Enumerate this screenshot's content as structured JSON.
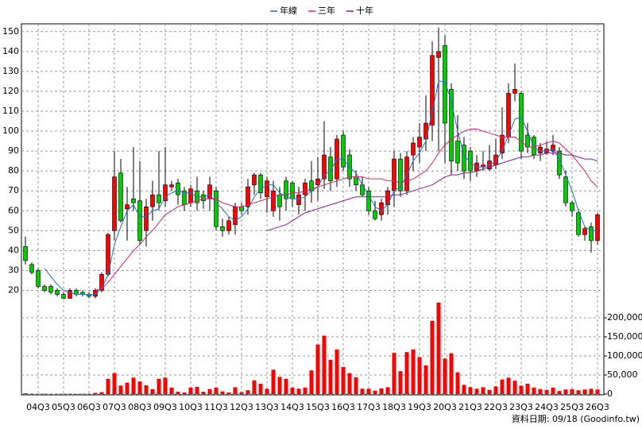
{
  "chart_data": {
    "type": "candlestick",
    "categories": [
      null,
      null,
      "04Q3",
      null,
      null,
      null,
      "05Q3",
      null,
      null,
      null,
      "06Q3",
      null,
      null,
      null,
      "07Q3",
      null,
      null,
      null,
      "08Q3",
      null,
      null,
      null,
      "09Q3",
      null,
      null,
      null,
      "10Q3",
      null,
      null,
      null,
      "11Q3",
      null,
      null,
      null,
      "12Q3",
      null,
      null,
      null,
      "13Q3",
      null,
      null,
      null,
      "14Q3",
      null,
      null,
      null,
      "15Q3",
      null,
      null,
      null,
      "16Q3",
      null,
      null,
      null,
      "17Q3",
      null,
      null,
      null,
      "18Q3",
      null,
      null,
      null,
      "19Q3",
      null,
      null,
      null,
      "20Q3",
      null,
      null,
      null,
      "21Q3",
      null,
      null,
      null,
      "22Q3",
      null,
      null,
      null,
      "23Q3",
      null,
      null,
      null,
      "24Q3",
      null,
      null,
      null,
      "25Q3",
      null,
      null,
      null,
      "26Q3"
    ],
    "open": [
      42,
      33,
      30,
      22,
      22,
      20,
      18,
      16,
      20,
      19,
      18,
      17,
      20,
      28,
      50,
      79,
      61,
      66,
      65,
      50,
      62,
      68,
      65,
      72,
      74,
      70,
      64,
      70,
      68,
      66,
      70,
      52,
      50,
      53,
      62,
      62,
      73,
      78,
      67,
      60,
      68,
      75,
      74,
      63,
      68,
      75,
      73,
      76,
      87,
      76,
      98,
      88,
      77,
      73,
      70,
      60,
      58,
      63,
      70,
      86,
      70,
      88,
      92,
      96,
      103,
      137,
      143,
      121,
      95,
      93,
      90,
      80,
      82,
      81,
      83,
      89,
      97,
      119,
      119,
      98,
      97,
      89,
      89,
      90,
      90,
      77,
      64,
      59,
      48,
      52,
      45
    ],
    "high": [
      47,
      34,
      31,
      23,
      23,
      21,
      19,
      21,
      21,
      20,
      19,
      21,
      29,
      49,
      90,
      86,
      72,
      92,
      85,
      66,
      75,
      90,
      92,
      75,
      76,
      72,
      73,
      77,
      70,
      77,
      72,
      56,
      57,
      64,
      64,
      76,
      79,
      79,
      77,
      75,
      72,
      77,
      75,
      72,
      76,
      85,
      87,
      105,
      92,
      98,
      100,
      91,
      80,
      77,
      72,
      65,
      66,
      72,
      90,
      89,
      90,
      97,
      104,
      118,
      145,
      152,
      148,
      124,
      108,
      97,
      92,
      88,
      90,
      93,
      96,
      112,
      124,
      134,
      120,
      104,
      98,
      94,
      95,
      98,
      92,
      80,
      65,
      61,
      52,
      54,
      59
    ],
    "low": [
      33,
      28,
      21,
      19,
      18,
      17,
      15.5,
      16,
      17,
      17,
      16,
      16,
      19,
      27,
      45,
      54,
      45,
      60,
      43,
      42,
      55,
      60,
      62,
      70,
      63,
      60,
      62,
      60,
      61,
      60,
      50,
      47,
      48,
      48,
      58,
      58,
      68,
      66,
      59,
      57,
      55,
      60,
      62,
      58,
      60,
      64,
      65,
      71,
      70,
      72,
      80,
      72,
      70,
      67,
      58,
      55,
      55,
      58,
      62,
      67,
      68,
      80,
      84,
      90,
      95,
      90,
      84,
      78,
      80,
      76,
      75,
      77,
      80,
      80,
      81,
      86,
      94,
      115,
      86,
      89,
      86,
      85,
      88,
      88,
      76,
      62,
      57,
      47,
      45,
      39,
      43
    ],
    "close": [
      35,
      29,
      22,
      20,
      19,
      18,
      16,
      20,
      18,
      18,
      17,
      20,
      28,
      48,
      77,
      55,
      63,
      64,
      45,
      62,
      68,
      64,
      73,
      73,
      68,
      63,
      71,
      64,
      65,
      73,
      52,
      50,
      55,
      62,
      60,
      72,
      78,
      69,
      75,
      70,
      62,
      66,
      66,
      68,
      74,
      70,
      76,
      88,
      75,
      96,
      82,
      76,
      73,
      68,
      60,
      56,
      64,
      70,
      86,
      70,
      87,
      94,
      97,
      104,
      138,
      140,
      104,
      85,
      84,
      80,
      80,
      84,
      83,
      85,
      88,
      98,
      119,
      121,
      90,
      92,
      88,
      92,
      91,
      93,
      78,
      64,
      60,
      48,
      51,
      45,
      58
    ],
    "up_color": "#ff0000",
    "down_color": "#00cc00",
    "series": [
      {
        "name": "年線",
        "color": "#1f6fd0",
        "values": [
          null,
          null,
          null,
          31,
          27,
          23,
          20,
          19,
          18,
          18,
          18,
          18,
          21,
          28,
          43,
          52,
          60,
          63,
          57,
          57,
          60,
          61,
          67,
          69,
          70,
          69,
          69,
          67,
          67,
          68,
          64,
          61,
          57,
          55,
          57,
          61,
          67,
          71,
          73,
          73,
          69,
          67,
          66,
          66,
          67,
          70,
          72,
          78,
          80,
          86,
          86,
          82,
          79,
          73,
          68,
          62,
          60,
          63,
          70,
          72,
          78,
          85,
          89,
          95,
          110,
          125,
          125,
          115,
          100,
          88,
          84,
          82,
          82,
          83,
          85,
          90,
          98,
          106,
          107,
          100,
          92,
          90,
          90,
          91,
          86,
          78,
          70,
          60,
          52,
          50,
          50
        ]
      },
      {
        "name": "三年",
        "color": "#e0206a",
        "values": [
          null,
          null,
          null,
          null,
          null,
          null,
          null,
          null,
          null,
          null,
          null,
          20,
          21,
          24,
          28,
          32,
          36,
          40,
          43,
          47,
          50,
          54,
          58,
          60,
          62,
          63,
          64,
          65,
          66,
          66,
          66,
          64,
          63,
          62,
          62,
          63,
          64,
          65,
          66,
          67,
          68,
          68,
          69,
          69,
          70,
          71,
          72,
          73,
          74,
          75,
          76,
          77,
          77,
          77,
          76,
          76,
          76,
          75,
          75,
          74,
          75,
          76,
          78,
          80,
          84,
          89,
          93,
          96,
          98,
          100,
          101,
          101,
          100,
          99,
          98,
          97,
          97,
          97,
          95,
          92,
          92,
          93,
          94,
          95,
          94,
          91,
          88,
          84,
          80,
          75,
          72
        ]
      },
      {
        "name": "十年",
        "color": "#8a1aa8",
        "values": [
          null,
          null,
          null,
          null,
          null,
          null,
          null,
          null,
          null,
          null,
          null,
          null,
          null,
          null,
          null,
          null,
          null,
          null,
          null,
          null,
          null,
          null,
          null,
          null,
          null,
          null,
          null,
          null,
          null,
          null,
          null,
          null,
          null,
          null,
          null,
          null,
          null,
          null,
          50,
          51,
          52,
          53,
          55,
          57,
          59,
          60,
          61,
          62,
          63,
          64,
          65,
          66,
          67,
          67,
          67,
          67,
          67,
          67,
          68,
          68,
          69,
          70,
          71,
          72,
          73,
          75,
          77,
          78,
          78,
          79,
          79,
          80,
          81,
          82,
          83,
          84,
          85,
          86,
          87,
          87,
          88,
          88,
          89,
          89,
          89,
          88,
          88,
          87,
          86,
          86,
          85
        ]
      }
    ],
    "ylim": [
      15,
      153.9
    ],
    "yticks": [
      20,
      30,
      40,
      50,
      60,
      70,
      80,
      90,
      100,
      110,
      120,
      130,
      140,
      150
    ],
    "volume": {
      "color": "#ff0000",
      "values": [
        2000,
        1000,
        500,
        1000,
        500,
        500,
        500,
        800,
        500,
        500,
        500,
        3000,
        5000,
        40000,
        55000,
        22000,
        30000,
        43000,
        33000,
        23000,
        13000,
        40000,
        43000,
        17000,
        6000,
        4000,
        17000,
        19000,
        6000,
        13000,
        17000,
        7000,
        4000,
        18000,
        5000,
        10000,
        36000,
        27000,
        14000,
        64000,
        45000,
        40000,
        17000,
        14000,
        17000,
        62000,
        130000,
        153000,
        90000,
        117000,
        71000,
        55000,
        44000,
        14000,
        14000,
        9000,
        15000,
        18000,
        108000,
        60000,
        110000,
        117000,
        97000,
        75000,
        192000,
        240000,
        93000,
        107000,
        57000,
        24000,
        18000,
        14000,
        18000,
        11000,
        20000,
        38000,
        43000,
        35000,
        22000,
        27000,
        17000,
        13000,
        11000,
        17000,
        8000,
        12000,
        13000,
        10000,
        12000,
        14000,
        12000
      ],
      "ylim": [
        0,
        245833
      ],
      "yticks": [
        0,
        {
          "value": 50000,
          "label": "50,000"
        },
        {
          "value": 100000,
          "label": "100,000"
        },
        {
          "value": 150000,
          "label": "150,000"
        },
        {
          "value": 200000,
          "label": "200,000"
        }
      ]
    },
    "grid": true,
    "source": "資料日期: 09/18  (Goodinfo.tw)"
  }
}
